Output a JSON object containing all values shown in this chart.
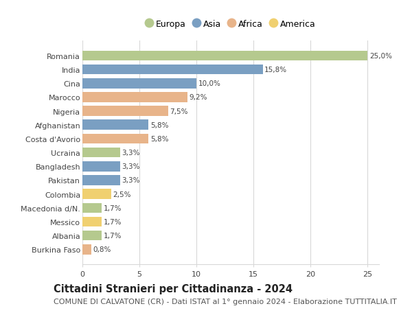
{
  "countries": [
    "Romania",
    "India",
    "Cina",
    "Marocco",
    "Nigeria",
    "Afghanistan",
    "Costa d'Avorio",
    "Ucraina",
    "Bangladesh",
    "Pakistan",
    "Colombia",
    "Macedonia d/N.",
    "Messico",
    "Albania",
    "Burkina Faso"
  ],
  "values": [
    25.0,
    15.8,
    10.0,
    9.2,
    7.5,
    5.8,
    5.8,
    3.3,
    3.3,
    3.3,
    2.5,
    1.7,
    1.7,
    1.7,
    0.8
  ],
  "labels": [
    "25,0%",
    "15,8%",
    "10,0%",
    "9,2%",
    "7,5%",
    "5,8%",
    "5,8%",
    "3,3%",
    "3,3%",
    "3,3%",
    "2,5%",
    "1,7%",
    "1,7%",
    "1,7%",
    "0,8%"
  ],
  "continents": [
    "Europa",
    "Asia",
    "Asia",
    "Africa",
    "Africa",
    "Asia",
    "Africa",
    "Europa",
    "Asia",
    "Asia",
    "America",
    "Europa",
    "America",
    "Europa",
    "Africa"
  ],
  "colors": {
    "Europa": "#b5c98e",
    "Asia": "#7a9fc2",
    "Africa": "#e8b48a",
    "America": "#f0d070"
  },
  "legend_order": [
    "Europa",
    "Asia",
    "Africa",
    "America"
  ],
  "title": "Cittadini Stranieri per Cittadinanza - 2024",
  "subtitle": "COMUNE DI CALVATONE (CR) - Dati ISTAT al 1° gennaio 2024 - Elaborazione TUTTITALIA.IT",
  "xlim": [
    0,
    26
  ],
  "xticks": [
    0,
    5,
    10,
    15,
    20,
    25
  ],
  "bg_color": "#ffffff",
  "grid_color": "#d8d8d8",
  "bar_height": 0.72,
  "title_fontsize": 10.5,
  "subtitle_fontsize": 8,
  "label_fontsize": 7.5,
  "tick_fontsize": 8,
  "legend_fontsize": 9
}
